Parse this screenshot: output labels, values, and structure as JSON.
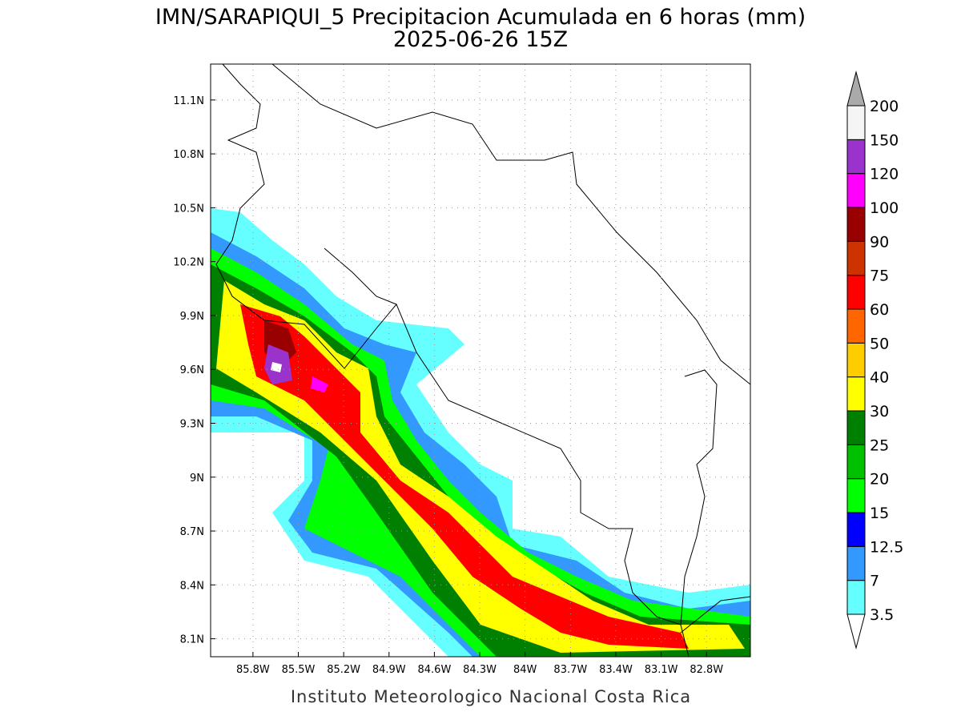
{
  "header": {
    "title": "IMN/SARAPIQUI_5 Precipitacion Acumulada en 6 horas (mm)",
    "subtitle": "2025-06-26 15Z"
  },
  "map": {
    "xlim": [
      -86.08,
      -82.51
    ],
    "ylim": [
      8.0,
      11.3
    ],
    "xticks": [
      {
        "value": -85.8,
        "label": "85.8W"
      },
      {
        "value": -85.5,
        "label": "85.5W"
      },
      {
        "value": -85.2,
        "label": "85.2W"
      },
      {
        "value": -84.9,
        "label": "84.9W"
      },
      {
        "value": -84.6,
        "label": "84.6W"
      },
      {
        "value": -84.3,
        "label": "84.3W"
      },
      {
        "value": -84.0,
        "label": "84W"
      },
      {
        "value": -83.7,
        "label": "83.7W"
      },
      {
        "value": -83.4,
        "label": "83.4W"
      },
      {
        "value": -83.1,
        "label": "83.1W"
      },
      {
        "value": -82.8,
        "label": "82.8W"
      }
    ],
    "yticks": [
      {
        "value": 8.1,
        "label": "8.1N"
      },
      {
        "value": 8.4,
        "label": "8.4N"
      },
      {
        "value": 8.7,
        "label": "8.7N"
      },
      {
        "value": 9.0,
        "label": "9N"
      },
      {
        "value": 9.3,
        "label": "9.3N"
      },
      {
        "value": 9.6,
        "label": "9.6N"
      },
      {
        "value": 9.9,
        "label": "9.9N"
      },
      {
        "value": 10.2,
        "label": "10.2N"
      },
      {
        "value": 10.5,
        "label": "10.5N"
      },
      {
        "value": 10.8,
        "label": "10.8N"
      },
      {
        "value": 11.1,
        "label": "11.1N"
      }
    ],
    "grid": true
  },
  "colorbar": {
    "levels": [
      3.5,
      7,
      12.5,
      15,
      20,
      25,
      30,
      40,
      50,
      60,
      75,
      90,
      100,
      120,
      150,
      200
    ],
    "colors": [
      "#ffffff",
      "#66ffff",
      "#3399ff",
      "#0000ff",
      "#00ff00",
      "#00c000",
      "#008000",
      "#ffff00",
      "#ffcc00",
      "#ff6600",
      "#ff0000",
      "#cc3300",
      "#990000",
      "#ff00ff",
      "#9933cc",
      "#f5f5f5",
      "#aaaaaa"
    ]
  },
  "footer": "Instituto Meteorologico Nacional Costa Rica"
}
